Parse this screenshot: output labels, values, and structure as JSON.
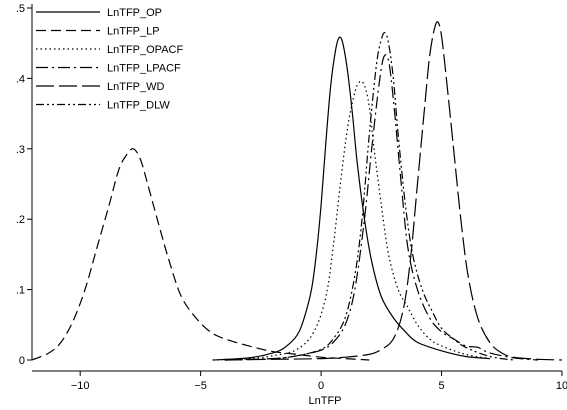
{
  "chart_data": {
    "type": "line",
    "title": "",
    "xlabel": "LnTFP",
    "ylabel": "",
    "xlim": [
      -12,
      10
    ],
    "ylim": [
      0,
      0.5
    ],
    "x_ticks": [
      -10,
      -5,
      0,
      5,
      10
    ],
    "x_tick_labels": [
      "−10",
      "−5",
      "0",
      "5",
      "10"
    ],
    "y_ticks": [
      0,
      0.1,
      0.2,
      0.3,
      0.4,
      0.5
    ],
    "y_tick_labels": [
      "0",
      ".1",
      ".2",
      ".3",
      ".4",
      ".5"
    ],
    "grid": false,
    "legend_position": "top-left",
    "series": [
      {
        "name": "LnTFP_OP",
        "dash": "solid",
        "x": [
          -4.5,
          -3,
          -2,
          -1.5,
          -1,
          -0.7,
          -0.4,
          -0.2,
          0,
          0.2,
          0.4,
          0.6,
          0.75,
          0.9,
          1.1,
          1.3,
          1.5,
          1.8,
          2.1,
          2.5,
          3,
          3.5,
          4,
          5,
          6,
          7
        ],
        "y": [
          0,
          0.003,
          0.01,
          0.018,
          0.035,
          0.06,
          0.1,
          0.15,
          0.22,
          0.31,
          0.39,
          0.44,
          0.458,
          0.45,
          0.41,
          0.35,
          0.28,
          0.2,
          0.14,
          0.09,
          0.06,
          0.04,
          0.025,
          0.013,
          0.005,
          0.002
        ]
      },
      {
        "name": "LnTFP_LP",
        "dash": "10,5",
        "x": [
          -12,
          -11.3,
          -10.8,
          -10.3,
          -9.8,
          -9.3,
          -8.8,
          -8.4,
          -8.1,
          -7.8,
          -7.5,
          -7.2,
          -6.8,
          -6.3,
          -5.8,
          -5.2,
          -4.6,
          -4,
          -3,
          -2,
          -1,
          0,
          1,
          2
        ],
        "y": [
          0,
          0.01,
          0.025,
          0.055,
          0.1,
          0.16,
          0.22,
          0.27,
          0.29,
          0.3,
          0.285,
          0.25,
          0.2,
          0.14,
          0.09,
          0.06,
          0.04,
          0.03,
          0.02,
          0.012,
          0.008,
          0.004,
          0.002,
          0
        ]
      },
      {
        "name": "LnTFP_OPACF",
        "dash": "1.5,3",
        "x": [
          -4.5,
          -3,
          -2,
          -1,
          -0.3,
          0.2,
          0.5,
          0.8,
          1.1,
          1.4,
          1.6,
          1.8,
          2,
          2.2,
          2.5,
          2.8,
          3.2,
          3.6,
          4,
          4.5,
          5,
          6,
          7
        ],
        "y": [
          0,
          0.002,
          0.006,
          0.015,
          0.04,
          0.09,
          0.16,
          0.25,
          0.33,
          0.38,
          0.395,
          0.39,
          0.36,
          0.3,
          0.22,
          0.15,
          0.1,
          0.075,
          0.05,
          0.03,
          0.02,
          0.008,
          0.002
        ]
      },
      {
        "name": "LnTFP_LPACF",
        "dash": "12,4,2,4",
        "x": [
          -4,
          -2,
          -1,
          0,
          0.5,
          1,
          1.4,
          1.8,
          2.1,
          2.4,
          2.6,
          2.8,
          3,
          3.3,
          3.6,
          4,
          4.5,
          5,
          5.5,
          6,
          6.5,
          7,
          8,
          9
        ],
        "y": [
          0,
          0.002,
          0.006,
          0.014,
          0.025,
          0.05,
          0.1,
          0.2,
          0.3,
          0.39,
          0.43,
          0.425,
          0.37,
          0.26,
          0.16,
          0.1,
          0.06,
          0.04,
          0.03,
          0.02,
          0.018,
          0.01,
          0.003,
          0
        ]
      },
      {
        "name": "LnTFP_WD",
        "dash": "18,5",
        "x": [
          -4,
          -2,
          0,
          1,
          2,
          2.5,
          3,
          3.4,
          3.7,
          4,
          4.3,
          4.5,
          4.7,
          4.85,
          5,
          5.2,
          5.5,
          5.8,
          6.1,
          6.5,
          7,
          7.5,
          8,
          9,
          10
        ],
        "y": [
          0,
          0.001,
          0.002,
          0.004,
          0.008,
          0.015,
          0.03,
          0.07,
          0.14,
          0.25,
          0.36,
          0.43,
          0.47,
          0.48,
          0.46,
          0.4,
          0.3,
          0.2,
          0.12,
          0.06,
          0.025,
          0.01,
          0.004,
          0.001,
          0
        ]
      },
      {
        "name": "LnTFP_DLW",
        "dash": "8,3,2,3,2,3",
        "x": [
          -4,
          -2,
          -1,
          0,
          0.5,
          1,
          1.4,
          1.7,
          2,
          2.3,
          2.5,
          2.65,
          2.8,
          3,
          3.2,
          3.5,
          3.8,
          4.2,
          4.6,
          5,
          5.5,
          6,
          7,
          8
        ],
        "y": [
          0,
          0.002,
          0.006,
          0.015,
          0.03,
          0.06,
          0.12,
          0.2,
          0.32,
          0.42,
          0.455,
          0.465,
          0.45,
          0.4,
          0.32,
          0.22,
          0.15,
          0.1,
          0.07,
          0.045,
          0.03,
          0.018,
          0.005,
          0
        ]
      }
    ]
  }
}
